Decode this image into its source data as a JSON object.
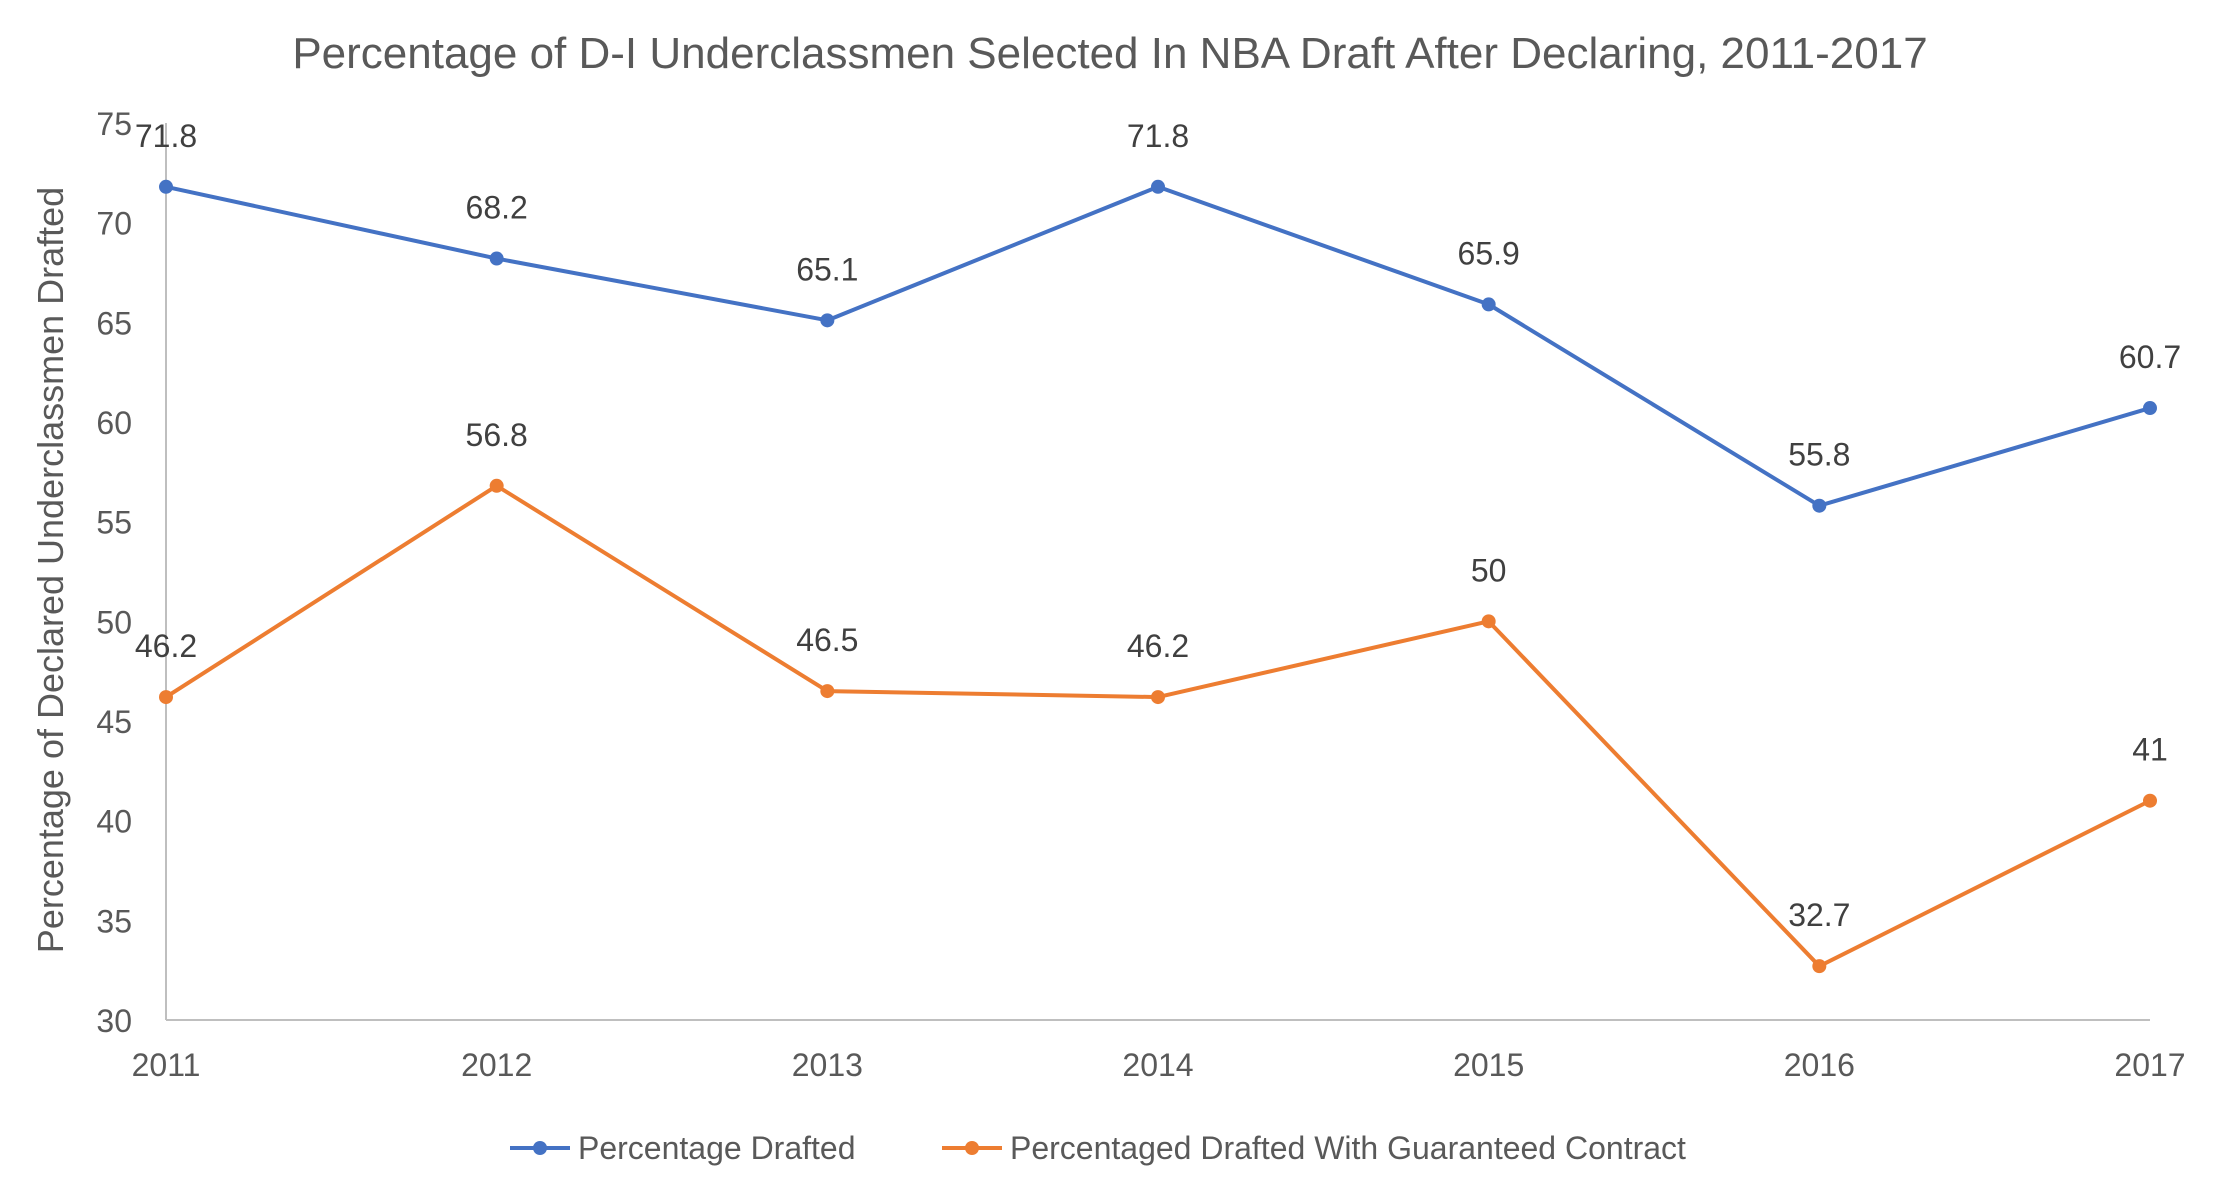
{
  "chart_data": {
    "type": "line",
    "title": "Percentage of D-I Underclassmen Selected In NBA Draft After Declaring, 2011-2017",
    "xlabel": "",
    "ylabel": "Percentage of Declared Underclassmen Drafted",
    "categories": [
      "2011",
      "2012",
      "2013",
      "2014",
      "2015",
      "2016",
      "2017"
    ],
    "ylim": [
      30,
      75
    ],
    "yticks": [
      "30",
      "35",
      "40",
      "45",
      "50",
      "55",
      "60",
      "65",
      "70",
      "75"
    ],
    "grid": false,
    "legend_position": "bottom",
    "series": [
      {
        "name": "Percentage Drafted",
        "color": "#4472C4",
        "values": [
          71.8,
          68.2,
          65.1,
          71.8,
          65.9,
          55.8,
          60.7
        ],
        "labels": [
          "71.8",
          "68.2",
          "65.1",
          "71.8",
          "65.9",
          "55.8",
          "60.7"
        ]
      },
      {
        "name": "Percentaged Drafted With Guaranteed Contract",
        "color": "#ED7D31",
        "values": [
          46.2,
          56.8,
          46.5,
          46.2,
          50,
          32.7,
          41
        ],
        "labels": [
          "46.2",
          "56.8",
          "46.5",
          "46.2",
          "50",
          "32.7",
          "41"
        ]
      }
    ]
  }
}
